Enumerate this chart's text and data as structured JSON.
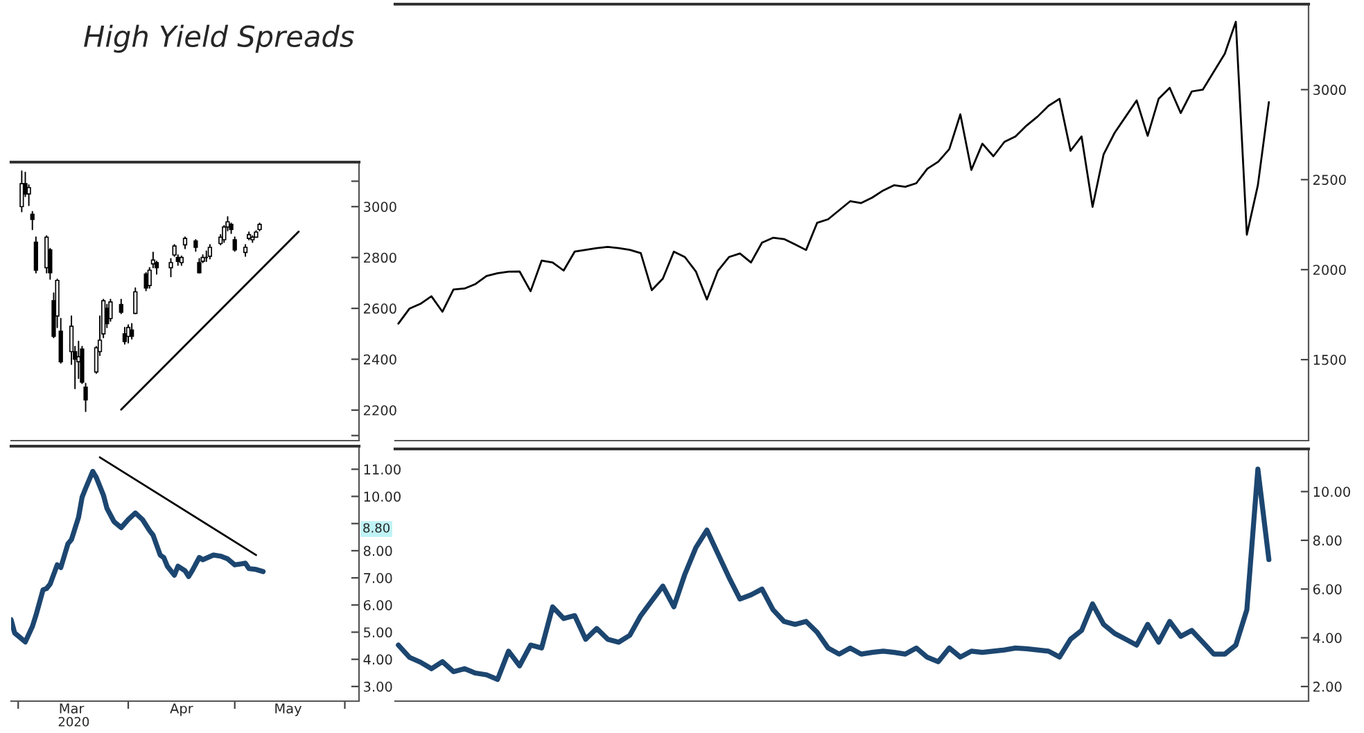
{
  "chart_data": [
    {
      "type": "candlestick",
      "title": "High Yield Spreads",
      "color": "#000000",
      "x": [
        "2020-03-02",
        "2020-03-03",
        "2020-03-04",
        "2020-03-05",
        "2020-03-06",
        "2020-03-09",
        "2020-03-10",
        "2020-03-11",
        "2020-03-12",
        "2020-03-13",
        "2020-03-16",
        "2020-03-17",
        "2020-03-18",
        "2020-03-19",
        "2020-03-20",
        "2020-03-23",
        "2020-03-24",
        "2020-03-25",
        "2020-03-26",
        "2020-03-27",
        "2020-03-30",
        "2020-03-31",
        "2020-04-01",
        "2020-04-02",
        "2020-04-03",
        "2020-04-06",
        "2020-04-07",
        "2020-04-08",
        "2020-04-09",
        "2020-04-13",
        "2020-04-14",
        "2020-04-15",
        "2020-04-16",
        "2020-04-17",
        "2020-04-20",
        "2020-04-21",
        "2020-04-22",
        "2020-04-23",
        "2020-04-24",
        "2020-04-27",
        "2020-04-28",
        "2020-04-29",
        "2020-04-30",
        "2020-05-01",
        "2020-05-04",
        "2020-05-05",
        "2020-05-06",
        "2020-05-07",
        "2020-05-08"
      ],
      "ohlc": [
        [
          3000,
          3140,
          2980,
          3090
        ],
        [
          3090,
          3135,
          3040,
          3050
        ],
        [
          3050,
          3085,
          3005,
          3075
        ],
        [
          2970,
          2980,
          2910,
          2950
        ],
        [
          2860,
          2880,
          2740,
          2750
        ],
        [
          2760,
          2885,
          2740,
          2880
        ],
        [
          2830,
          2835,
          2715,
          2740
        ],
        [
          2630,
          2660,
          2485,
          2490
        ],
        [
          2570,
          2715,
          2525,
          2710
        ],
        [
          2510,
          2560,
          2385,
          2390
        ],
        [
          2430,
          2570,
          2380,
          2530
        ],
        [
          2430,
          2450,
          2285,
          2400
        ],
        [
          2390,
          2470,
          2325,
          2410
        ],
        [
          2440,
          2450,
          2305,
          2310
        ],
        [
          2290,
          2305,
          2195,
          2240
        ],
        [
          2350,
          2450,
          2345,
          2445
        ],
        [
          2430,
          2570,
          2415,
          2475
        ],
        [
          2500,
          2635,
          2485,
          2630
        ],
        [
          2600,
          2615,
          2525,
          2540
        ],
        [
          2560,
          2635,
          2550,
          2625
        ],
        [
          2615,
          2635,
          2580,
          2585
        ],
        [
          2500,
          2525,
          2460,
          2470
        ],
        [
          2490,
          2535,
          2465,
          2525
        ],
        [
          2515,
          2540,
          2480,
          2490
        ],
        [
          2580,
          2680,
          2580,
          2665
        ],
        [
          2735,
          2740,
          2670,
          2680
        ],
        [
          2690,
          2760,
          2680,
          2750
        ],
        [
          2775,
          2820,
          2760,
          2790
        ],
        [
          2780,
          2785,
          2735,
          2760
        ],
        [
          2760,
          2795,
          2725,
          2780
        ],
        [
          2810,
          2850,
          2805,
          2845
        ],
        [
          2800,
          2810,
          2770,
          2785
        ],
        [
          2780,
          2805,
          2770,
          2800
        ],
        [
          2850,
          2880,
          2835,
          2875
        ],
        [
          2865,
          2870,
          2825,
          2840
        ],
        [
          2780,
          2795,
          2740,
          2740
        ],
        [
          2785,
          2810,
          2780,
          2800
        ],
        [
          2800,
          2825,
          2785,
          2800
        ],
        [
          2805,
          2850,
          2795,
          2840
        ],
        [
          2855,
          2890,
          2850,
          2880
        ],
        [
          2870,
          2925,
          2860,
          2920
        ],
        [
          2920,
          2960,
          2905,
          2940
        ],
        [
          2930,
          2935,
          2895,
          2910
        ],
        [
          2870,
          2880,
          2825,
          2830
        ],
        [
          2820,
          2850,
          2805,
          2840
        ],
        [
          2875,
          2900,
          2870,
          2890
        ],
        [
          2870,
          2885,
          2860,
          2880
        ],
        [
          2880,
          2905,
          2880,
          2900
        ],
        [
          2910,
          2935,
          2905,
          2930
        ]
      ],
      "series": [
        {
          "type": "line",
          "color": "#000000",
          "x": [
            "2020-03-30",
            "2020-05-19"
          ],
          "values": [
            2202,
            2902
          ]
        }
      ],
      "xlim": [
        "2020-02-28",
        "2020-06-05"
      ],
      "ylim": [
        2080,
        3175
      ],
      "yticks": [
        {
          "value": 2100,
          "label": null
        },
        2200,
        2400,
        2600,
        2800,
        3000,
        {
          "value": 3100,
          "label": null
        }
      ],
      "tick_labels": "y"
    },
    {
      "type": "line",
      "color": "#000000",
      "categories": [
        null,
        null,
        null,
        null,
        null,
        null,
        null,
        null,
        null,
        null,
        null,
        null,
        null,
        null,
        null,
        null,
        null,
        null,
        null,
        null,
        null,
        null,
        null,
        null,
        null,
        null,
        null,
        null,
        null,
        null,
        null,
        null,
        null,
        null,
        null,
        null,
        null,
        null,
        null,
        null,
        null,
        null,
        null,
        null,
        null,
        null,
        null,
        null,
        null,
        null,
        null,
        null,
        null,
        null,
        null,
        null,
        null,
        null,
        null,
        null,
        null,
        null,
        null,
        null,
        null,
        null,
        null,
        null,
        null,
        null,
        null,
        null,
        null,
        null,
        null,
        null,
        null,
        null,
        null,
        null
      ],
      "values": [
        1700,
        1783,
        1810,
        1852,
        1766,
        1890,
        1895,
        1920,
        1965,
        1980,
        1989,
        1990,
        1880,
        2050,
        2040,
        1995,
        2100,
        2110,
        2120,
        2126,
        2120,
        2110,
        2092,
        1886,
        1950,
        2100,
        2070,
        1990,
        1834,
        1994,
        2070,
        2090,
        2040,
        2150,
        2177,
        2170,
        2140,
        2109,
        2260,
        2280,
        2330,
        2380,
        2370,
        2400,
        2440,
        2469,
        2460,
        2480,
        2560,
        2600,
        2670,
        2863,
        2554,
        2700,
        2630,
        2710,
        2740,
        2800,
        2850,
        2910,
        2949,
        2660,
        2740,
        2349,
        2640,
        2760,
        2850,
        2940,
        2743,
        2950,
        3010,
        2870,
        2990,
        3000,
        3100,
        3200,
        3377,
        2194,
        2469,
        2931
      ],
      "ylim": [
        1050,
        3475
      ],
      "yticks": [
        1500,
        2000,
        2500,
        3000
      ],
      "tick_labels": "y"
    },
    {
      "type": "line",
      "series": [
        {
          "color": "#1c4670",
          "x": [
            "2020-02-28",
            "2020-02-29",
            "2020-03-03",
            "2020-03-05",
            "2020-03-06",
            "2020-03-08",
            "2020-03-09",
            "2020-03-10",
            "2020-03-12",
            "2020-03-13",
            "2020-03-15",
            "2020-03-16",
            "2020-03-18",
            "2020-03-19",
            "2020-03-20",
            "2020-03-22",
            "2020-03-23",
            "2020-03-25",
            "2020-03-26",
            "2020-03-28",
            "2020-03-30",
            "2020-04-01",
            "2020-04-03",
            "2020-04-05",
            "2020-04-07",
            "2020-04-08",
            "2020-04-10",
            "2020-04-11",
            "2020-04-12",
            "2020-04-14",
            "2020-04-15",
            "2020-04-17",
            "2020-04-18",
            "2020-04-19",
            "2020-04-21",
            "2020-04-22",
            "2020-04-25",
            "2020-04-27",
            "2020-04-29",
            "2020-05-01",
            "2020-05-03",
            "2020-05-04",
            "2020-05-05",
            "2020-05-07",
            "2020-05-09"
          ],
          "values": [
            5.46,
            4.97,
            4.64,
            5.21,
            5.62,
            6.56,
            6.61,
            6.77,
            7.48,
            7.38,
            8.25,
            8.41,
            9.23,
            9.97,
            10.3,
            10.92,
            10.7,
            10.05,
            9.56,
            9.07,
            8.85,
            9.15,
            9.39,
            9.15,
            8.74,
            8.57,
            7.84,
            7.75,
            7.43,
            7.1,
            7.43,
            7.26,
            7.05,
            7.26,
            7.75,
            7.67,
            7.84,
            7.8,
            7.7,
            7.48,
            7.52,
            7.54,
            7.34,
            7.31,
            7.23
          ]
        },
        {
          "type": "line",
          "color": "#000000",
          "x": [
            "2020-03-24",
            "2020-05-07"
          ],
          "values": [
            11.44,
            7.84
          ]
        }
      ],
      "annotations": [
        "8.80",
        "2020"
      ],
      "xlim": [
        "2020-02-28",
        "2020-06-05"
      ],
      "xticks": [
        {
          "value": "2020-03-01",
          "label": null
        },
        {
          "value": "2020-03-16",
          "label": "Mar"
        },
        {
          "value": "2020-04-01",
          "label": null
        },
        {
          "value": "2020-04-16",
          "label": "Apr"
        },
        {
          "value": "2020-05-01",
          "label": null
        },
        {
          "value": "2020-05-16",
          "label": "May"
        },
        {
          "value": "2020-06-01",
          "label": null
        }
      ],
      "ylim": [
        2.46,
        11.85
      ],
      "yticks": [
        {
          "value": 3,
          "label": "3.00"
        },
        {
          "value": 4,
          "label": "4.00"
        },
        {
          "value": 5,
          "label": "5.00"
        },
        {
          "value": 6,
          "label": "6.00"
        },
        {
          "value": 7,
          "label": "7.00"
        },
        {
          "value": 8,
          "label": "8.00"
        },
        {
          "value": 9,
          "label": null
        },
        {
          "value": 10,
          "label": "10.00"
        },
        {
          "value": 11,
          "label": "11.00"
        }
      ]
    },
    {
      "type": "line",
      "color": "#1c4670",
      "categories": [
        null,
        null,
        null,
        null,
        null,
        null,
        null,
        null,
        null,
        null,
        null,
        null,
        null,
        null,
        null,
        null,
        null,
        null,
        null,
        null,
        null,
        null,
        null,
        null,
        null,
        null,
        null,
        null,
        null,
        null,
        null,
        null,
        null,
        null,
        null,
        null,
        null,
        null,
        null,
        null,
        null,
        null,
        null,
        null,
        null,
        null,
        null,
        null,
        null,
        null,
        null,
        null,
        null,
        null,
        null,
        null,
        null,
        null,
        null,
        null,
        null,
        null,
        null,
        null,
        null,
        null,
        null,
        null,
        null,
        null,
        null,
        null,
        null,
        null,
        null,
        null,
        null,
        null,
        null,
        null
      ],
      "values": [
        3.7,
        3.2,
        3.0,
        2.73,
        3.02,
        2.61,
        2.73,
        2.55,
        2.48,
        2.29,
        3.45,
        2.85,
        3.7,
        3.58,
        5.27,
        4.79,
        4.91,
        3.94,
        4.38,
        3.94,
        3.82,
        4.1,
        4.91,
        5.52,
        6.12,
        5.27,
        6.61,
        7.7,
        8.42,
        7.45,
        6.48,
        5.59,
        5.76,
        6.0,
        5.15,
        4.67,
        4.55,
        4.67,
        4.23,
        3.58,
        3.33,
        3.58,
        3.33,
        3.4,
        3.45,
        3.4,
        3.33,
        3.58,
        3.2,
        3.02,
        3.58,
        3.21,
        3.45,
        3.4,
        3.45,
        3.5,
        3.58,
        3.55,
        3.5,
        3.45,
        3.21,
        3.94,
        4.3,
        5.39,
        4.55,
        4.18,
        3.94,
        3.7,
        4.55,
        3.82,
        4.67,
        4.06,
        4.3,
        3.82,
        3.33,
        3.33,
        3.7,
        5.15,
        10.92,
        7.21
      ],
      "ylim": [
        1.4,
        11.75
      ],
      "yticks": [
        {
          "value": 2,
          "label": "2.00"
        },
        {
          "value": 4,
          "label": "4.00"
        },
        {
          "value": 6,
          "label": "6.00"
        },
        {
          "value": 8,
          "label": "8.00"
        },
        {
          "value": 10,
          "label": "10.00"
        }
      ],
      "tick_labels": "y"
    }
  ]
}
